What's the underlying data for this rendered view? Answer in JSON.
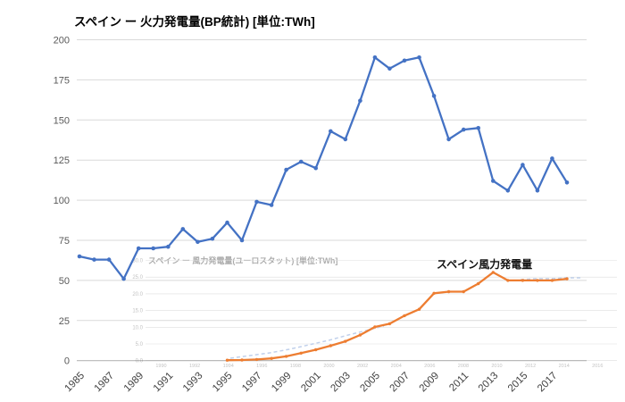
{
  "title": "スペイン ー 火力発電量(BP統計) [単位:TWh]",
  "annotation": {
    "wind_label": "スペイン風力発電量"
  },
  "colors": {
    "thermal": "#4472c4",
    "wind": "#ed7d31",
    "grid": "#d9d9d9",
    "axis": "#b7b7b7",
    "tick_label": "#595959",
    "xtick_label": "#404040"
  },
  "chart_data": {
    "type": "line",
    "title": "スペイン ー 火力発電量(BP統計) [単位:TWh]",
    "unit": "TWh",
    "xlabel": "",
    "ylabel": "",
    "ylim": [
      0,
      200
    ],
    "yticks": [
      0,
      25,
      50,
      75,
      100,
      125,
      150,
      175,
      200
    ],
    "xtick_years": [
      1985,
      1987,
      1989,
      1991,
      1993,
      1995,
      1997,
      1999,
      2001,
      2003,
      2005,
      2007,
      2009,
      2011,
      2013,
      2015,
      2017
    ],
    "x_range": [
      1985,
      2018
    ],
    "grid": true,
    "legend_position": "none",
    "series": [
      {
        "name": "スペイン火力発電量(BP統計)",
        "color": "#4472c4",
        "start_year": 1985,
        "values": [
          65,
          63,
          63,
          51,
          70,
          70,
          71,
          82,
          74,
          76,
          86,
          75,
          99,
          97,
          119,
          124,
          120,
          143,
          138,
          162,
          189,
          182,
          187,
          189,
          165,
          138,
          144,
          145,
          112,
          106,
          122,
          106,
          126,
          111
        ]
      },
      {
        "name": "スペイン風力発電量",
        "color": "#ed7d31",
        "start_year": 1995,
        "values": [
          0.3,
          0.4,
          0.7,
          1.4,
          2.7,
          4.7,
          6.8,
          9.3,
          12,
          16,
          21,
          23,
          28,
          32,
          42,
          43,
          43,
          48,
          55,
          50,
          50,
          50,
          50,
          51
        ]
      }
    ]
  },
  "overlay_ghost": {
    "title": "スペイン ー 風力発電量(ユーロスタット) [単位:TWh]",
    "yticks": [
      "30.0",
      "25.0",
      "20.0",
      "15.0",
      "10.0",
      "5.0",
      "0.0"
    ],
    "xticks": [
      "1990",
      "1992",
      "1994",
      "1996",
      "1998",
      "2000",
      "2002",
      "2004",
      "2006",
      "2008",
      "2010",
      "2012",
      "2014",
      "2016"
    ],
    "dashed_segments": [
      [
        [
          258,
          401
        ],
        [
          280,
          398
        ],
        [
          302,
          395
        ],
        [
          324,
          391
        ],
        [
          346,
          386
        ],
        [
          368,
          381
        ],
        [
          390,
          375
        ],
        [
          410,
          370
        ],
        [
          430,
          365
        ]
      ],
      [
        [
          583,
          313
        ],
        [
          600,
          312
        ],
        [
          618,
          312
        ],
        [
          635,
          311
        ],
        [
          652,
          311
        ]
      ]
    ]
  }
}
